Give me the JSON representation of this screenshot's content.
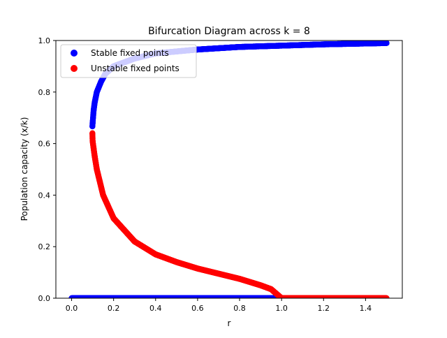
{
  "chart_data": {
    "type": "scatter",
    "title": "Bifurcation Diagram across k = 8",
    "xlabel": "r",
    "ylabel": "Population capacity (x/k)",
    "xlim": [
      -0.075,
      1.575
    ],
    "ylim": [
      0,
      1
    ],
    "xticks": [
      "0.0",
      "0.2",
      "0.4",
      "0.6",
      "0.8",
      "1.0",
      "1.2",
      "1.4"
    ],
    "yticks": [
      "0.0",
      "0.2",
      "0.4",
      "0.6",
      "0.8",
      "1.0"
    ],
    "grid": false,
    "legend_position": "top-left",
    "k": 8,
    "r_range": [
      0.0,
      1.5
    ],
    "series": [
      {
        "name": "Stable fixed points",
        "color": "#0000ff",
        "description": "upper branch x/k for r >= 0.099 (starts ~0.66 and rises toward ~0.99); extinction branch x/k = 0 for r in [0, 1]",
        "points": [
          [
            0.099,
            0.667
          ],
          [
            0.1,
            0.68
          ],
          [
            0.105,
            0.73
          ],
          [
            0.11,
            0.76
          ],
          [
            0.12,
            0.8
          ],
          [
            0.14,
            0.84
          ],
          [
            0.16,
            0.87
          ],
          [
            0.2,
            0.9
          ],
          [
            0.3,
            0.93
          ],
          [
            0.4,
            0.95
          ],
          [
            0.6,
            0.965
          ],
          [
            0.8,
            0.975
          ],
          [
            1.0,
            0.98
          ],
          [
            1.2,
            0.985
          ],
          [
            1.5,
            0.99
          ],
          [
            0.0,
            0.0
          ],
          [
            0.5,
            0.0
          ],
          [
            1.0,
            0.0
          ]
        ]
      },
      {
        "name": "Unstable fixed points",
        "color": "#ff0000",
        "description": "middle branch x/k for r in [0.099, 1] (falls from ~0.66 to 0); extinction branch x/k = 0 for r in (1, 1.5]",
        "points": [
          [
            0.099,
            0.64
          ],
          [
            0.1,
            0.61
          ],
          [
            0.11,
            0.55
          ],
          [
            0.12,
            0.5
          ],
          [
            0.15,
            0.4
          ],
          [
            0.2,
            0.31
          ],
          [
            0.3,
            0.22
          ],
          [
            0.4,
            0.17
          ],
          [
            0.5,
            0.14
          ],
          [
            0.6,
            0.115
          ],
          [
            0.7,
            0.095
          ],
          [
            0.8,
            0.075
          ],
          [
            0.9,
            0.05
          ],
          [
            0.95,
            0.035
          ],
          [
            1.0,
            0.0
          ],
          [
            1.2,
            0.0
          ],
          [
            1.5,
            0.0
          ]
        ]
      }
    ]
  }
}
